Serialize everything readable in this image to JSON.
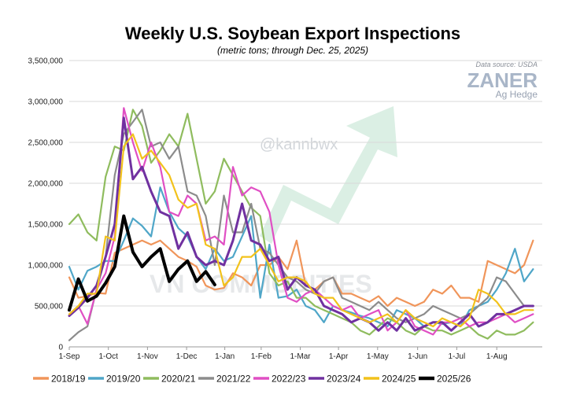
{
  "chart_data": {
    "type": "line",
    "title": "Weekly U.S. Soybean Export Inspections",
    "subtitle": "(metric tons; through Dec. 25, 2025)",
    "source": "Data source: USDA",
    "brand": "ZANER",
    "brand_sub": "Ag Hedge",
    "watermark_handle": "@kannbwx",
    "watermark_text": "VN COMMODITIES",
    "colors": {
      "background": "#ffffff",
      "grid": "#d9d9d9",
      "watermark_arrow": "#cfeadb"
    },
    "grid": true,
    "legend_position": "bottom",
    "ylim": [
      0,
      3500000
    ],
    "yticks": [
      0,
      500000,
      1000000,
      1500000,
      2000000,
      2500000,
      3000000,
      3500000
    ],
    "ytick_labels": [
      "0",
      "500,000",
      "1,000,000",
      "1,500,000",
      "2,000,000",
      "2,500,000",
      "3,000,000",
      "3,500,000"
    ],
    "x_label_positions": [
      0,
      4.3,
      8.6,
      12.9,
      17.1,
      21.1,
      25.4,
      29.6,
      33.9,
      38.3,
      42.6,
      47.0
    ],
    "x_labels": [
      "1-Sep",
      "1-Oct",
      "1-Nov",
      "1-Dec",
      "1-Jan",
      "1-Feb",
      "1-Mar",
      "1-Apr",
      "1-May",
      "1-Jun",
      "1-Jul",
      "1-Aug"
    ],
    "xlim": [
      0,
      52
    ],
    "series": [
      {
        "name": "2018/19",
        "color": "#f0955a",
        "width": 2.2,
        "values": [
          850000,
          600000,
          620000,
          660000,
          650000,
          1150000,
          1200000,
          1250000,
          1300000,
          1250000,
          1300000,
          1200000,
          1100000,
          1050000,
          980000,
          750000,
          700000,
          720000,
          900000,
          850000,
          750000,
          1000000,
          1000000,
          1100000,
          950000,
          1300000,
          750000,
          700000,
          800000,
          850000,
          650000,
          650000,
          600000,
          550000,
          620000,
          500000,
          600000,
          550000,
          500000,
          550000,
          700000,
          650000,
          750000,
          600000,
          600000,
          550000,
          1050000,
          1000000,
          950000,
          900000,
          1000000,
          1300000
        ]
      },
      {
        "name": "2019/20",
        "color": "#4fa6c8",
        "width": 2.2,
        "values": [
          980000,
          700000,
          930000,
          980000,
          1050000,
          1050000,
          1300000,
          1570000,
          1480000,
          1350000,
          1950000,
          1650000,
          1450000,
          1350000,
          1100000,
          950000,
          1200000,
          1050000,
          1100000,
          1350000,
          1600000,
          600000,
          1250000,
          600000,
          620000,
          700000,
          500000,
          450000,
          300000,
          500000,
          450000,
          420000,
          380000,
          350000,
          300000,
          250000,
          450000,
          400000,
          350000,
          250000,
          300000,
          280000,
          300000,
          250000,
          450000,
          500000,
          550000,
          700000,
          900000,
          1200000,
          800000,
          950000
        ]
      },
      {
        "name": "2020/21",
        "color": "#8fbc5e",
        "width": 2.2,
        "values": [
          1500000,
          1620000,
          1400000,
          1300000,
          2080000,
          2450000,
          2400000,
          2900000,
          2700000,
          2250000,
          2400000,
          2600000,
          2450000,
          2850000,
          2300000,
          1750000,
          1900000,
          2300000,
          2100000,
          1900000,
          1700000,
          1600000,
          900000,
          750000,
          800000,
          600000,
          600000,
          500000,
          450000,
          400000,
          350000,
          300000,
          200000,
          150000,
          250000,
          350000,
          300000,
          200000,
          150000,
          250000,
          200000,
          200000,
          150000,
          200000,
          250000,
          150000,
          100000,
          200000,
          150000,
          150000,
          200000,
          300000
        ]
      },
      {
        "name": "2021/22",
        "color": "#8c8c8c",
        "width": 2.2,
        "values": [
          80000,
          180000,
          250000,
          700000,
          1100000,
          2100000,
          2600000,
          2750000,
          2900000,
          2450000,
          2500000,
          2300000,
          2450000,
          1900000,
          1850000,
          1600000,
          1000000,
          1850000,
          1400000,
          1400000,
          1750000,
          1200000,
          1150000,
          1000000,
          850000,
          800000,
          700000,
          650000,
          800000,
          850000,
          600000,
          550000,
          500000,
          450000,
          550000,
          450000,
          350000,
          300000,
          350000,
          400000,
          500000,
          450000,
          400000,
          350000,
          400000,
          500000,
          600000,
          850000,
          800000,
          650000,
          500000,
          500000
        ]
      },
      {
        "name": "2022/23",
        "color": "#e04fc4",
        "width": 2.2,
        "values": [
          400000,
          500000,
          280000,
          700000,
          900000,
          1350000,
          2920000,
          2500000,
          2150000,
          2500000,
          2200000,
          1650000,
          1600000,
          1850000,
          1750000,
          1300000,
          1350000,
          1250000,
          2200000,
          1850000,
          1950000,
          1900000,
          1650000,
          1000000,
          600000,
          550000,
          650000,
          700000,
          600000,
          500000,
          450000,
          500000,
          350000,
          400000,
          450000,
          200000,
          300000,
          450000,
          250000,
          200000,
          150000,
          300000,
          300000,
          350000,
          250000,
          300000,
          300000,
          350000,
          400000,
          300000,
          350000,
          400000
        ]
      },
      {
        "name": "2023/24",
        "color": "#7031a0",
        "width": 3.0,
        "values": [
          380000,
          480000,
          600000,
          750000,
          1100000,
          1500000,
          2800000,
          2050000,
          2200000,
          1900000,
          1650000,
          1600000,
          1200000,
          1400000,
          1100000,
          1000000,
          1050000,
          1000000,
          1300000,
          1750000,
          1300000,
          1250000,
          1050000,
          1100000,
          700000,
          850000,
          750000,
          700000,
          500000,
          450000,
          400000,
          300000,
          350000,
          300000,
          200000,
          300000,
          200000,
          350000,
          200000,
          250000,
          300000,
          300000,
          200000,
          300000,
          400000,
          250000,
          300000,
          400000,
          400000,
          450000,
          500000,
          500000
        ]
      },
      {
        "name": "2024/25",
        "color": "#f2c21b",
        "width": 2.2,
        "values": [
          400000,
          500000,
          650000,
          650000,
          1350000,
          1300000,
          2450000,
          2600000,
          2300000,
          2400000,
          2250000,
          2100000,
          1800000,
          1700000,
          1750000,
          1250000,
          1200000,
          750000,
          850000,
          1100000,
          1100000,
          1200000,
          1000000,
          800000,
          850000,
          850000,
          800000,
          650000,
          600000,
          600000,
          450000,
          400000,
          350000,
          300000,
          350000,
          400000,
          300000,
          450000,
          350000,
          300000,
          250000,
          350000,
          300000,
          250000,
          350000,
          700000,
          650000,
          550000,
          400000,
          400000,
          450000,
          450000
        ]
      },
      {
        "name": "2025/26",
        "color": "#000000",
        "width": 4.0,
        "values": [
          450000,
          830000,
          560000,
          620000,
          780000,
          980000,
          1600000,
          1160000,
          980000,
          1100000,
          1200000,
          800000,
          950000,
          1050000,
          800000,
          920000,
          760000
        ]
      }
    ]
  }
}
